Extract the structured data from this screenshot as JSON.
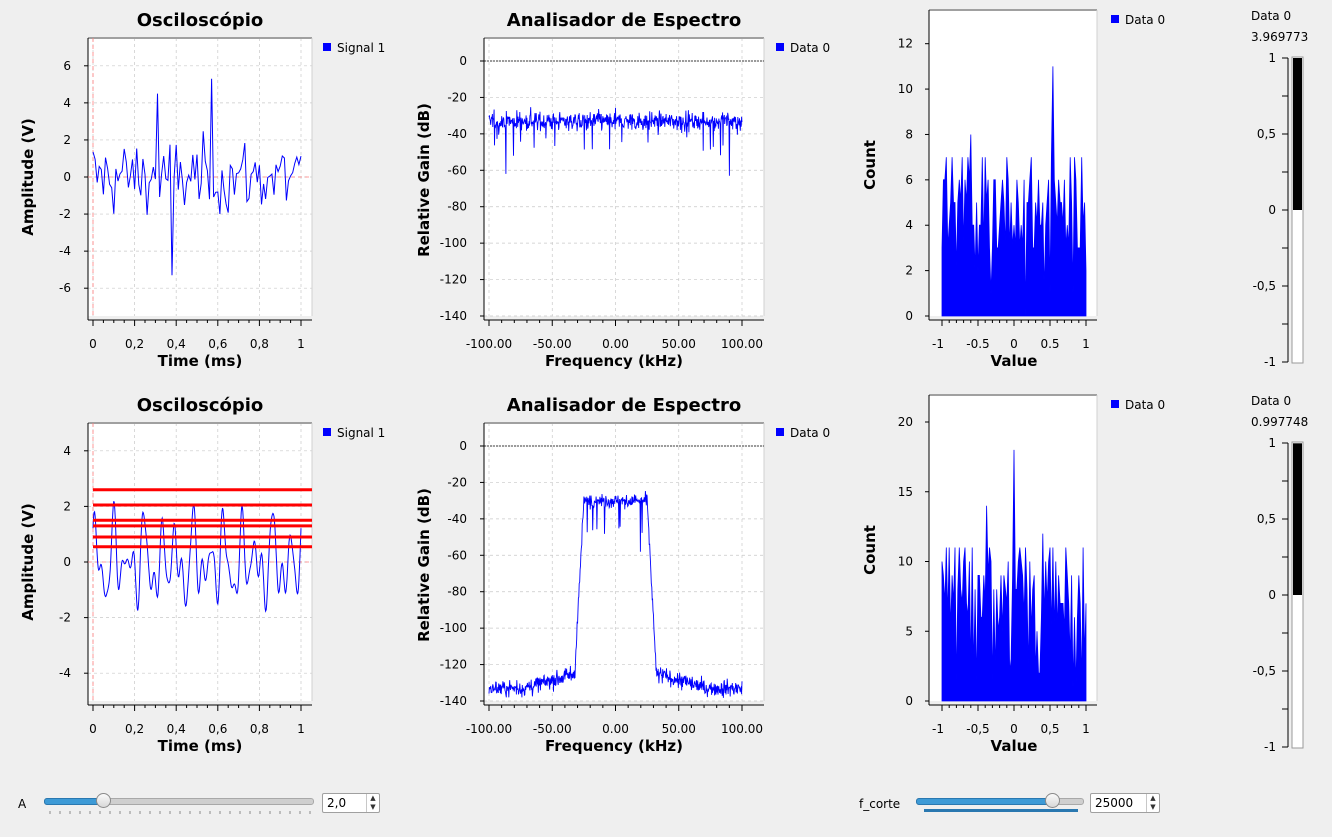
{
  "colors": {
    "trace": "#0000ff",
    "threshold": "#ff0000",
    "grid": "#c8c8c8",
    "bar": "#000000"
  },
  "scopes": [
    {
      "title": "Osciloscópio",
      "xlabel": "Time (ms)",
      "ylabel": "Amplitude (V)",
      "legend": "Signal 1",
      "yticks": [
        "6",
        "4",
        "2",
        "0",
        "-2",
        "-4",
        "-6"
      ],
      "xticks": [
        "0",
        "0,2",
        "0,4",
        "0,6",
        "0,8",
        "1"
      ]
    },
    {
      "title": "Osciloscópio",
      "xlabel": "Time (ms)",
      "ylabel": "Amplitude (V)",
      "legend": "Signal 1",
      "yticks": [
        "4",
        "2",
        "0",
        "-2",
        "-4"
      ],
      "xticks": [
        "0",
        "0,2",
        "0,4",
        "0,6",
        "0,8",
        "1"
      ]
    }
  ],
  "spectra": [
    {
      "title": "Analisador de Espectro",
      "xlabel": "Frequency (kHz)",
      "ylabel": "Relative Gain (dB)",
      "legend": "Data 0",
      "yticks": [
        "0",
        "-20",
        "-40",
        "-60",
        "-80",
        "-100",
        "-120",
        "-140"
      ],
      "xticks": [
        "-100.00",
        "-50.00",
        "0.00",
        "50.00",
        "100.00"
      ]
    },
    {
      "title": "Analisador de Espectro",
      "xlabel": "Frequency (kHz)",
      "ylabel": "Relative Gain (dB)",
      "legend": "Data 0",
      "yticks": [
        "0",
        "-20",
        "-40",
        "-60",
        "-80",
        "-100",
        "-120",
        "-140"
      ],
      "xticks": [
        "-100.00",
        "-50.00",
        "0.00",
        "50.00",
        "100.00"
      ]
    }
  ],
  "histograms": [
    {
      "xlabel": "Value",
      "ylabel": "Count",
      "legend": "Data 0",
      "yticks": [
        "12",
        "10",
        "8",
        "6",
        "4",
        "2",
        "0"
      ],
      "xticks": [
        "-1",
        "-0.5",
        "0",
        "0.5",
        "1"
      ]
    },
    {
      "xlabel": "Value",
      "ylabel": "Count",
      "legend": "Data 0",
      "yticks": [
        "20",
        "15",
        "10",
        "5",
        "0"
      ],
      "xticks": [
        "-1",
        "-0,5",
        "0",
        "0,5",
        "1"
      ]
    }
  ],
  "gauges": [
    {
      "label": "Data 0",
      "value": "3.969773",
      "level": 1.0,
      "ticks": [
        "1",
        "0,5",
        "0",
        "-0,5",
        "-1"
      ]
    },
    {
      "label": "Data 0",
      "value": "0.997748",
      "level": 0.998,
      "ticks": [
        "1",
        "0,5",
        "0",
        "-0,5",
        "-1"
      ]
    }
  ],
  "controls": {
    "a": {
      "label": "A",
      "value": "2,0",
      "fraction": 0.22
    },
    "f_corte": {
      "label": "f_corte",
      "value": "25000",
      "fraction": 0.81
    }
  },
  "chart_data": [
    {
      "type": "line",
      "title": "Osciloscópio",
      "xlabel": "Time (ms)",
      "ylabel": "Amplitude (V)",
      "xlim": [
        0,
        1
      ],
      "ylim": [
        -7.5,
        7.5
      ],
      "series": [
        {
          "name": "Signal 1",
          "values": []
        }
      ]
    },
    {
      "type": "line",
      "title": "Analisador de Espectro",
      "xlabel": "Frequency (kHz)",
      "ylabel": "Relative Gain (dB)",
      "xlim": [
        -100,
        100
      ],
      "ylim": [
        -140,
        10
      ],
      "series": [
        {
          "name": "Data 0",
          "values": []
        }
      ]
    },
    {
      "type": "area",
      "xlabel": "Value",
      "ylabel": "Count",
      "xlim": [
        -1,
        1
      ],
      "ylim": [
        0,
        13
      ],
      "series": [
        {
          "name": "Data 0",
          "values": []
        }
      ]
    },
    {
      "type": "line",
      "title": "Osciloscópio",
      "xlabel": "Time (ms)",
      "ylabel": "Amplitude (V)",
      "xlim": [
        0,
        1
      ],
      "ylim": [
        -5,
        5
      ],
      "series": [
        {
          "name": "Signal 1",
          "values": []
        }
      ],
      "threshold_levels": [
        2.6,
        2.05,
        1.5,
        1.3,
        0.9,
        0.55
      ]
    },
    {
      "type": "line",
      "title": "Analisador de Espectro",
      "xlabel": "Frequency (kHz)",
      "ylabel": "Relative Gain (dB)",
      "xlim": [
        -100,
        100
      ],
      "ylim": [
        -140,
        10
      ],
      "series": [
        {
          "name": "Data 0",
          "values": []
        }
      ]
    },
    {
      "type": "area",
      "xlabel": "Value",
      "ylabel": "Count",
      "xlim": [
        -1,
        1
      ],
      "ylim": [
        0,
        22
      ],
      "series": [
        {
          "name": "Data 0",
          "values": []
        }
      ]
    }
  ]
}
